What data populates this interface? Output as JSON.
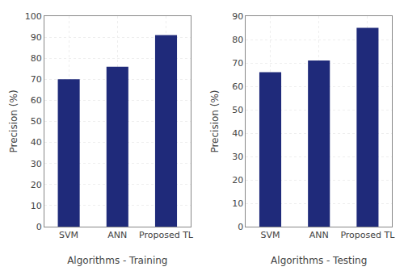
{
  "chart_data": [
    {
      "type": "bar",
      "categories": [
        "SVM",
        "ANN",
        "Proposed TL"
      ],
      "values": [
        70,
        76,
        91
      ],
      "color": "#1f2a7a",
      "xlabel": "Algorithms - Training",
      "ylabel": "Precision (%)",
      "ylim": [
        0,
        100
      ],
      "yticks": [
        0,
        10,
        20,
        30,
        40,
        50,
        60,
        70,
        80,
        90,
        100
      ],
      "grid": true
    },
    {
      "type": "bar",
      "categories": [
        "SVM",
        "ANN",
        "Proposed TL"
      ],
      "values": [
        66,
        71,
        85
      ],
      "color": "#1f2a7a",
      "xlabel": "Algorithms - Testing",
      "ylabel": "Precision (%)",
      "ylim": [
        0,
        90
      ],
      "yticks": [
        0,
        10,
        20,
        30,
        40,
        50,
        60,
        70,
        80,
        90
      ],
      "grid": true
    }
  ]
}
